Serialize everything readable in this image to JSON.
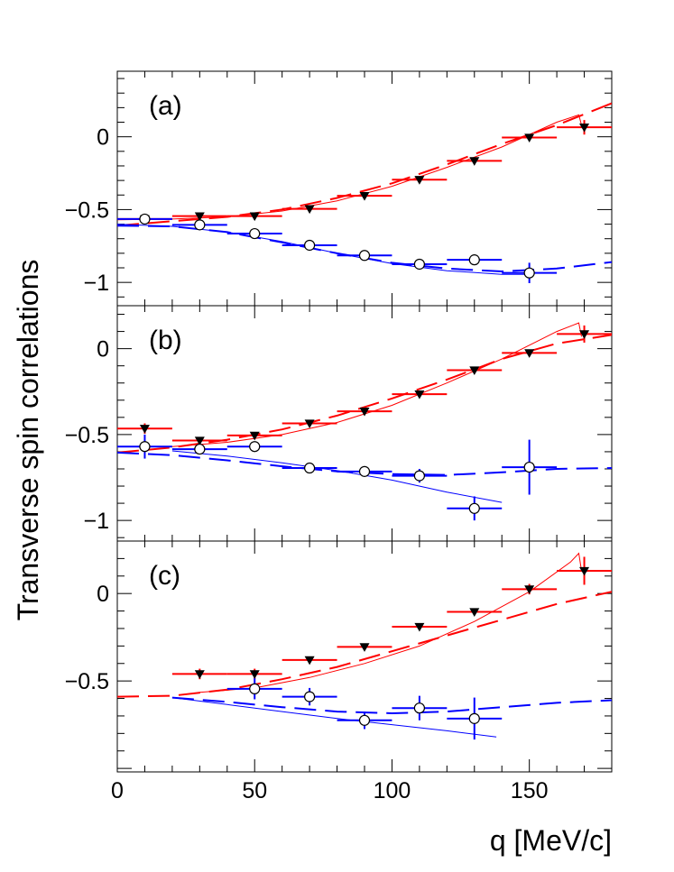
{
  "chart_data": {
    "type": "scatter",
    "xlabel": "q [MeV/c]",
    "ylabel": "Transverse spin correlations",
    "xlim": [
      0,
      180
    ],
    "x_ticks": [
      0,
      50,
      100,
      150
    ],
    "colors": {
      "red": "#ff0000",
      "blue": "#0000ff",
      "axis": "#000000"
    },
    "panels": [
      {
        "label": "(a)",
        "ylim": [
          -1.16,
          0.45
        ],
        "y_ticks": [
          0,
          -0.5,
          -1
        ],
        "y_tick_labels": [
          "0",
          "−0.5",
          "−1"
        ],
        "series": [
          {
            "color": "#ff0000",
            "marker": "triangle-down",
            "role": "data",
            "points": [
              {
                "x": 10,
                "y": -0.565,
                "xerr": 10,
                "yerr": 0.025
              },
              {
                "x": 30,
                "y": -0.545,
                "xerr": 10,
                "yerr": 0.0
              },
              {
                "x": 50,
                "y": -0.545,
                "xerr": 10,
                "yerr": 0.0
              },
              {
                "x": 70,
                "y": -0.495,
                "xerr": 10,
                "yerr": 0.0
              },
              {
                "x": 90,
                "y": -0.405,
                "xerr": 10,
                "yerr": 0.0
              },
              {
                "x": 110,
                "y": -0.295,
                "xerr": 10,
                "yerr": 0.0
              },
              {
                "x": 130,
                "y": -0.165,
                "xerr": 10,
                "yerr": 0.0
              },
              {
                "x": 150,
                "y": -0.005,
                "xerr": 10,
                "yerr": 0.0
              },
              {
                "x": 170,
                "y": 0.065,
                "xerr": 10,
                "yerr": 0.05
              }
            ]
          },
          {
            "color": "#0000ff",
            "marker": "circle-open",
            "role": "data",
            "points": [
              {
                "x": 10,
                "y": -0.565,
                "xerr": 10,
                "yerr": 0.0
              },
              {
                "x": 30,
                "y": -0.605,
                "xerr": 10,
                "yerr": 0.0
              },
              {
                "x": 50,
                "y": -0.665,
                "xerr": 10,
                "yerr": 0.0
              },
              {
                "x": 70,
                "y": -0.745,
                "xerr": 10,
                "yerr": 0.0
              },
              {
                "x": 90,
                "y": -0.815,
                "xerr": 10,
                "yerr": 0.0
              },
              {
                "x": 110,
                "y": -0.875,
                "xerr": 10,
                "yerr": 0.0
              },
              {
                "x": 130,
                "y": -0.845,
                "xerr": 10,
                "yerr": 0.0
              },
              {
                "x": 150,
                "y": -0.935,
                "xerr": 10,
                "yerr": 0.07
              }
            ]
          },
          {
            "color": "#ff0000",
            "style": "dashed",
            "role": "curve",
            "x": [
              0,
              20,
              40,
              60,
              80,
              100,
              120,
              140,
              160,
              180
            ],
            "y": [
              -0.61,
              -0.58,
              -0.55,
              -0.5,
              -0.42,
              -0.32,
              -0.19,
              -0.05,
              0.08,
              0.23
            ]
          },
          {
            "color": "#ff0000",
            "style": "solid",
            "role": "curve",
            "x": [
              0,
              20,
              40,
              60,
              80,
              100,
              120,
              140,
              160,
              168,
              169
            ],
            "y": [
              -0.57,
              -0.565,
              -0.55,
              -0.51,
              -0.44,
              -0.34,
              -0.21,
              -0.07,
              0.1,
              0.15,
              0.08
            ]
          },
          {
            "color": "#0000ff",
            "style": "dashed",
            "role": "curve",
            "x": [
              0,
              20,
              40,
              60,
              80,
              100,
              120,
              140,
              160,
              180
            ],
            "y": [
              -0.61,
              -0.615,
              -0.655,
              -0.725,
              -0.8,
              -0.865,
              -0.905,
              -0.925,
              -0.905,
              -0.86
            ]
          },
          {
            "color": "#0000ff",
            "style": "solid",
            "role": "curve",
            "x": [
              0,
              20,
              40,
              60,
              80,
              100,
              120,
              140,
              150
            ],
            "y": [
              -0.6,
              -0.615,
              -0.655,
              -0.72,
              -0.8,
              -0.87,
              -0.92,
              -0.945,
              -0.945
            ]
          }
        ]
      },
      {
        "label": "(b)",
        "ylim": [
          -1.12,
          0.25
        ],
        "y_ticks": [
          0,
          -0.5,
          -1
        ],
        "y_tick_labels": [
          "0",
          "−0.5",
          "−1"
        ],
        "series": [
          {
            "color": "#ff0000",
            "marker": "triangle-down",
            "role": "data",
            "points": [
              {
                "x": 10,
                "y": -0.465,
                "xerr": 10,
                "yerr": 0.03
              },
              {
                "x": 30,
                "y": -0.535,
                "xerr": 10,
                "yerr": 0.0
              },
              {
                "x": 50,
                "y": -0.505,
                "xerr": 10,
                "yerr": 0.0
              },
              {
                "x": 70,
                "y": -0.435,
                "xerr": 10,
                "yerr": 0.0
              },
              {
                "x": 90,
                "y": -0.365,
                "xerr": 10,
                "yerr": 0.0
              },
              {
                "x": 110,
                "y": -0.265,
                "xerr": 10,
                "yerr": 0.0
              },
              {
                "x": 130,
                "y": -0.125,
                "xerr": 10,
                "yerr": 0.0
              },
              {
                "x": 150,
                "y": -0.025,
                "xerr": 10,
                "yerr": 0.0
              },
              {
                "x": 170,
                "y": 0.085,
                "xerr": 10,
                "yerr": 0.05
              }
            ]
          },
          {
            "color": "#0000ff",
            "marker": "circle-open",
            "role": "data",
            "points": [
              {
                "x": 10,
                "y": -0.57,
                "xerr": 10,
                "yerr": 0.07
              },
              {
                "x": 30,
                "y": -0.585,
                "xerr": 10,
                "yerr": 0.0
              },
              {
                "x": 50,
                "y": -0.57,
                "xerr": 10,
                "yerr": 0.0
              },
              {
                "x": 70,
                "y": -0.695,
                "xerr": 10,
                "yerr": 0.0
              },
              {
                "x": 90,
                "y": -0.715,
                "xerr": 10,
                "yerr": 0.0
              },
              {
                "x": 110,
                "y": -0.74,
                "xerr": 10,
                "yerr": 0.04
              },
              {
                "x": 130,
                "y": -0.93,
                "xerr": 10,
                "yerr": 0.07
              },
              {
                "x": 150,
                "y": -0.69,
                "xerr": 10,
                "yerr": 0.16
              }
            ]
          },
          {
            "color": "#ff0000",
            "style": "dashed",
            "role": "curve",
            "x": [
              0,
              20,
              40,
              60,
              80,
              100,
              120,
              140,
              160,
              180
            ],
            "y": [
              -0.605,
              -0.575,
              -0.53,
              -0.47,
              -0.39,
              -0.29,
              -0.18,
              -0.06,
              0.03,
              0.08
            ]
          },
          {
            "color": "#ff0000",
            "style": "solid",
            "role": "curve",
            "x": [
              20,
              40,
              60,
              80,
              100,
              120,
              140,
              160,
              168,
              169
            ],
            "y": [
              -0.57,
              -0.545,
              -0.5,
              -0.43,
              -0.33,
              -0.2,
              -0.06,
              0.1,
              0.15,
              0.07
            ]
          },
          {
            "color": "#0000ff",
            "style": "dashed",
            "role": "curve",
            "x": [
              0,
              20,
              40,
              60,
              80,
              100,
              120,
              140,
              160,
              180
            ],
            "y": [
              -0.605,
              -0.62,
              -0.65,
              -0.685,
              -0.715,
              -0.73,
              -0.735,
              -0.72,
              -0.7,
              -0.695
            ]
          },
          {
            "color": "#0000ff",
            "style": "solid",
            "role": "curve",
            "x": [
              20,
              40,
              60,
              80,
              100,
              120,
              140
            ],
            "y": [
              -0.595,
              -0.625,
              -0.665,
              -0.71,
              -0.765,
              -0.835,
              -0.895
            ]
          }
        ]
      },
      {
        "label": "(c)",
        "ylim": [
          -1.02,
          0.3
        ],
        "y_ticks": [
          0,
          -0.5
        ],
        "y_tick_labels": [
          "0",
          "−0.5"
        ],
        "series": [
          {
            "color": "#ff0000",
            "marker": "triangle-down",
            "role": "data",
            "points": [
              {
                "x": 30,
                "y": -0.46,
                "xerr": 10,
                "yerr": 0.03
              },
              {
                "x": 50,
                "y": -0.46,
                "xerr": 10,
                "yerr": 0.03
              },
              {
                "x": 70,
                "y": -0.38,
                "xerr": 10,
                "yerr": 0.0
              },
              {
                "x": 90,
                "y": -0.305,
                "xerr": 10,
                "yerr": 0.0
              },
              {
                "x": 110,
                "y": -0.19,
                "xerr": 10,
                "yerr": 0.0
              },
              {
                "x": 130,
                "y": -0.105,
                "xerr": 10,
                "yerr": 0.0
              },
              {
                "x": 150,
                "y": 0.025,
                "xerr": 10,
                "yerr": 0.03
              },
              {
                "x": 170,
                "y": 0.13,
                "xerr": 10,
                "yerr": 0.08
              }
            ]
          },
          {
            "color": "#0000ff",
            "marker": "circle-open",
            "role": "data",
            "points": [
              {
                "x": 50,
                "y": -0.545,
                "xerr": 10,
                "yerr": 0.06
              },
              {
                "x": 70,
                "y": -0.59,
                "xerr": 10,
                "yerr": 0.05
              },
              {
                "x": 90,
                "y": -0.725,
                "xerr": 10,
                "yerr": 0.05
              },
              {
                "x": 110,
                "y": -0.655,
                "xerr": 10,
                "yerr": 0.07
              },
              {
                "x": 130,
                "y": -0.715,
                "xerr": 10,
                "yerr": 0.12
              }
            ]
          },
          {
            "color": "#ff0000",
            "style": "dashed",
            "role": "curve",
            "x": [
              0,
              20,
              40,
              60,
              80,
              100,
              120,
              140,
              160,
              180
            ],
            "y": [
              -0.59,
              -0.585,
              -0.55,
              -0.49,
              -0.42,
              -0.33,
              -0.24,
              -0.15,
              -0.06,
              0.01
            ]
          },
          {
            "color": "#ff0000",
            "style": "solid",
            "role": "curve",
            "x": [
              30,
              50,
              70,
              90,
              110,
              130,
              150,
              165,
              168,
              169
            ],
            "y": [
              -0.565,
              -0.54,
              -0.48,
              -0.4,
              -0.3,
              -0.16,
              0.01,
              0.18,
              0.23,
              0.13
            ]
          },
          {
            "color": "#0000ff",
            "style": "dashed",
            "role": "curve",
            "x": [
              20,
              40,
              60,
              80,
              100,
              120,
              140,
              160,
              180
            ],
            "y": [
              -0.595,
              -0.62,
              -0.65,
              -0.675,
              -0.685,
              -0.675,
              -0.65,
              -0.625,
              -0.61
            ]
          },
          {
            "color": "#0000ff",
            "style": "solid",
            "role": "curve",
            "x": [
              20,
              40,
              60,
              80,
              100,
              120,
              138
            ],
            "y": [
              -0.595,
              -0.635,
              -0.675,
              -0.715,
              -0.75,
              -0.785,
              -0.82
            ]
          }
        ]
      }
    ]
  }
}
